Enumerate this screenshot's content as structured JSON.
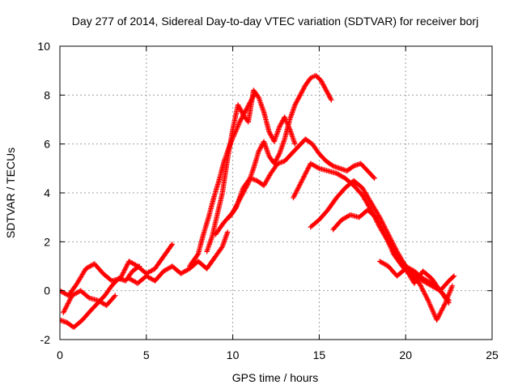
{
  "chart_data": {
    "type": "scatter",
    "title": "Day 277 of 2014, Sidereal Day-to-day VTEC variation (SDTVAR) for receiver borj",
    "xlabel": "GPS time / hours",
    "ylabel": "SDTVAR / TECUs",
    "xlim": [
      0,
      25
    ],
    "ylim": [
      -2,
      10
    ],
    "xticks": [
      "0",
      "5",
      "10",
      "15",
      "20",
      "25"
    ],
    "yticks": [
      "-2",
      "0",
      "2",
      "4",
      "6",
      "8",
      "10"
    ],
    "grid": true,
    "marker": "plus",
    "color": "#ff0000",
    "series": [
      {
        "x": [
          0.0,
          0.4,
          0.8,
          1.3,
          1.8,
          2.2,
          2.6,
          3.0,
          3.4,
          3.8,
          4.2,
          4.6
        ],
        "y": [
          -1.2,
          -1.3,
          -1.5,
          -1.2,
          -0.8,
          -0.5,
          -0.2,
          0.2,
          0.5,
          0.4,
          0.8,
          1.0
        ]
      },
      {
        "x": [
          0.0,
          0.5,
          1.0,
          1.5,
          2.0,
          2.5,
          3.0,
          3.5,
          4.0,
          4.5,
          5.0,
          5.5,
          6.0,
          6.5
        ],
        "y": [
          0.0,
          -0.2,
          0.3,
          0.9,
          1.1,
          0.7,
          0.4,
          0.5,
          1.2,
          1.0,
          0.7,
          0.9,
          1.4,
          1.9
        ]
      },
      {
        "x": [
          0.2,
          0.7,
          1.2,
          1.7,
          2.2,
          2.7,
          3.2
        ],
        "y": [
          -0.9,
          -0.2,
          0.0,
          -0.3,
          -0.4,
          -0.6,
          -0.2
        ]
      },
      {
        "x": [
          4.0,
          4.5,
          5.0,
          5.5,
          6.0,
          6.5,
          7.0,
          7.5,
          8.0,
          8.5,
          9.0,
          9.4,
          9.7
        ],
        "y": [
          0.5,
          0.3,
          0.6,
          0.4,
          0.8,
          1.0,
          0.7,
          0.9,
          1.2,
          0.9,
          1.4,
          1.8,
          2.4
        ]
      },
      {
        "x": [
          7.5,
          8.0,
          8.3,
          8.6,
          8.9,
          9.2,
          9.5,
          9.8,
          10.1,
          10.4,
          10.7,
          11.0,
          11.3
        ],
        "y": [
          1.0,
          1.5,
          2.3,
          3.0,
          3.8,
          4.5,
          5.3,
          5.9,
          6.4,
          6.9,
          7.3,
          7.7,
          8.1
        ]
      },
      {
        "x": [
          8.5,
          8.8,
          9.1,
          9.4,
          9.7,
          10.0,
          10.3,
          10.6,
          10.9,
          11.2,
          11.5,
          11.8,
          12.1,
          12.4,
          12.7,
          13.0,
          13.3,
          13.6
        ],
        "y": [
          1.6,
          2.2,
          3.1,
          4.0,
          5.4,
          6.6,
          7.6,
          7.2,
          6.9,
          8.2,
          7.9,
          7.3,
          6.5,
          6.1,
          6.7,
          7.1,
          6.6,
          6.0
        ]
      },
      {
        "x": [
          9.0,
          9.5,
          10.0,
          10.3,
          10.6,
          10.9,
          11.2,
          11.5,
          11.8,
          12.1,
          12.4,
          12.7,
          13.0,
          13.3,
          13.6,
          13.9,
          14.2,
          14.5,
          14.8,
          15.1,
          15.4,
          15.7
        ],
        "y": [
          2.3,
          2.8,
          3.2,
          3.6,
          4.0,
          4.4,
          5.0,
          5.7,
          6.1,
          5.5,
          5.2,
          5.6,
          6.2,
          7.0,
          7.6,
          8.0,
          8.4,
          8.7,
          8.8,
          8.6,
          8.2,
          7.8
        ]
      },
      {
        "x": [
          9.8,
          10.2,
          10.6,
          11.0,
          11.4,
          11.8,
          12.2,
          12.6,
          13.0,
          13.4,
          13.8,
          14.2,
          14.6,
          15.0,
          15.4,
          15.8,
          16.2,
          16.6,
          17.0,
          17.4,
          17.8,
          18.2
        ],
        "y": [
          3.0,
          3.4,
          4.2,
          4.6,
          4.5,
          4.3,
          4.8,
          5.2,
          5.3,
          5.6,
          5.9,
          6.2,
          6.0,
          5.6,
          5.3,
          5.1,
          5.0,
          4.9,
          5.1,
          5.2,
          4.9,
          4.6
        ]
      },
      {
        "x": [
          13.5,
          14.0,
          14.5,
          15.0,
          15.5,
          16.0,
          16.5,
          17.0,
          17.5,
          18.0,
          18.5,
          19.0,
          19.5,
          20.0,
          20.5,
          21.0,
          21.5,
          22.0,
          22.5
        ],
        "y": [
          3.8,
          4.5,
          5.2,
          5.0,
          4.9,
          4.8,
          4.6,
          4.3,
          3.9,
          3.3,
          2.6,
          2.0,
          1.4,
          1.0,
          0.8,
          0.5,
          0.3,
          0.0,
          -0.4
        ]
      },
      {
        "x": [
          14.5,
          15.0,
          15.5,
          16.0,
          16.5,
          17.0,
          17.5,
          18.0,
          18.5,
          19.0,
          19.5,
          20.0,
          20.5,
          21.0,
          21.5,
          22.0,
          22.5
        ],
        "y": [
          2.6,
          2.9,
          3.3,
          3.8,
          4.2,
          4.5,
          4.2,
          3.6,
          3.0,
          2.3,
          1.6,
          1.0,
          0.6,
          0.4,
          0.2,
          0.0,
          -0.5
        ]
      },
      {
        "x": [
          15.8,
          16.3,
          16.8,
          17.3,
          17.8,
          18.3,
          18.8,
          19.3,
          19.8,
          20.3,
          20.8,
          21.3,
          21.8,
          22.3,
          22.7
        ],
        "y": [
          2.5,
          2.9,
          3.1,
          3.0,
          3.3,
          3.0,
          2.3,
          1.5,
          1.0,
          0.6,
          0.3,
          -0.4,
          -1.2,
          -0.5,
          0.2
        ]
      },
      {
        "x": [
          18.5,
          19.0,
          19.5,
          20.0,
          20.5,
          21.0,
          21.5,
          22.0,
          22.5,
          22.8
        ],
        "y": [
          1.2,
          1.0,
          0.6,
          0.9,
          0.3,
          0.8,
          0.5,
          0.0,
          0.4,
          0.6
        ]
      }
    ]
  }
}
